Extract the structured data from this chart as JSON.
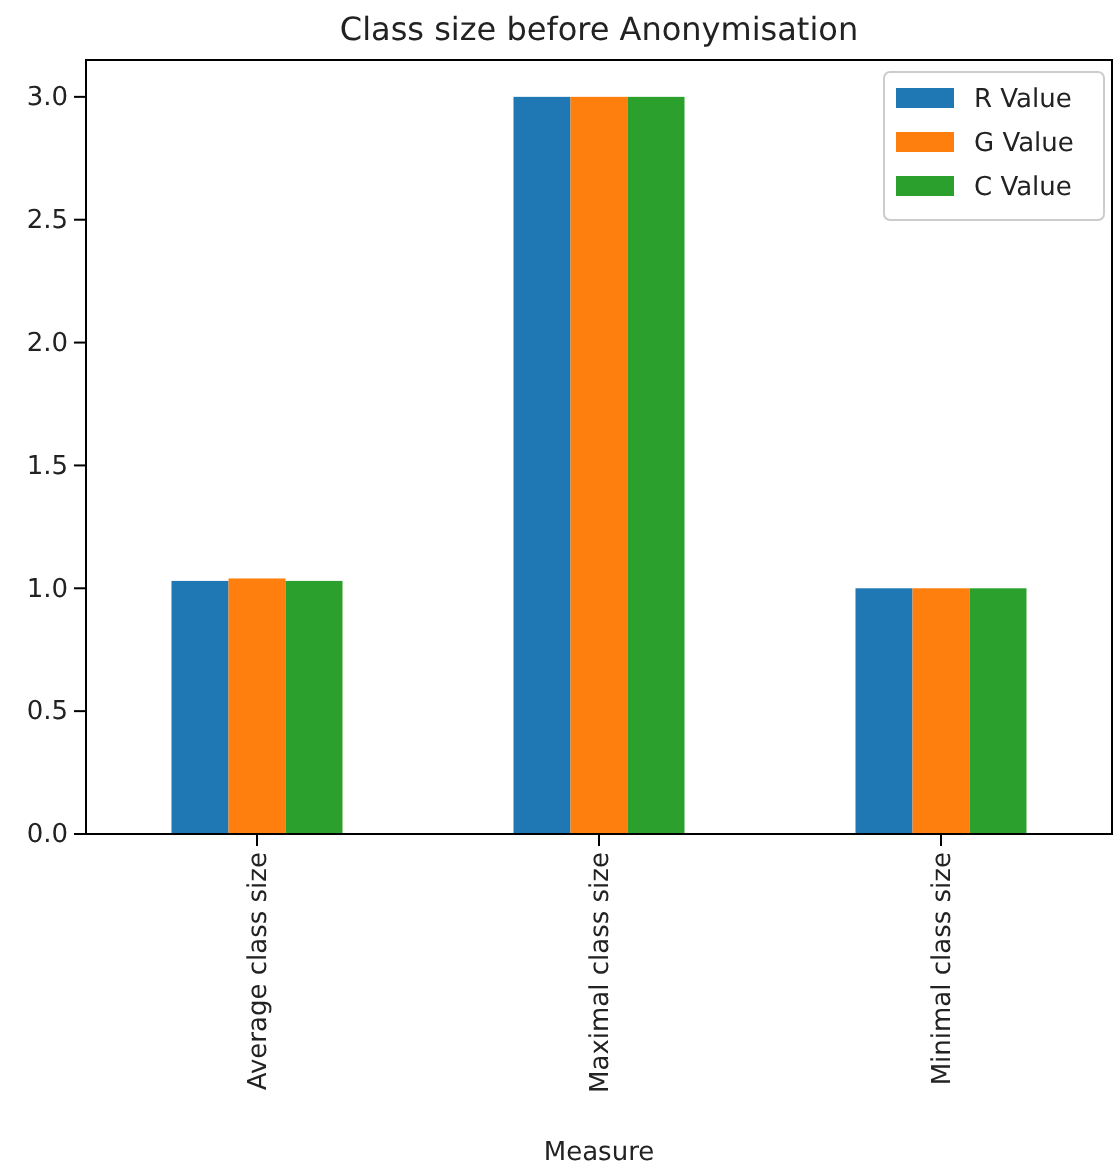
{
  "chart_data": {
    "type": "bar",
    "title": "Class size before Anonymisation",
    "xlabel": "Measure",
    "categories": [
      "Average class size",
      "Maximal class size",
      "Minimal class size"
    ],
    "series": [
      {
        "name": "R Value",
        "color": "#1f77b4",
        "values": [
          1.03,
          3.0,
          1.0
        ]
      },
      {
        "name": "G Value",
        "color": "#ff7f0e",
        "values": [
          1.04,
          3.0,
          1.0
        ]
      },
      {
        "name": "C Value",
        "color": "#2ca02c",
        "values": [
          1.03,
          3.0,
          1.0
        ]
      }
    ],
    "ylim": [
      0,
      3.15
    ],
    "yticks": [
      {
        "value": 0,
        "label": "0.0"
      },
      {
        "value": 0.5,
        "label": "0.5"
      },
      {
        "value": 1,
        "label": "1.0"
      },
      {
        "value": 1.5,
        "label": "1.5"
      },
      {
        "value": 2,
        "label": "2.0"
      },
      {
        "value": 2.5,
        "label": "2.5"
      },
      {
        "value": 3,
        "label": "3.0"
      }
    ],
    "legend": "top right",
    "grid": false
  }
}
